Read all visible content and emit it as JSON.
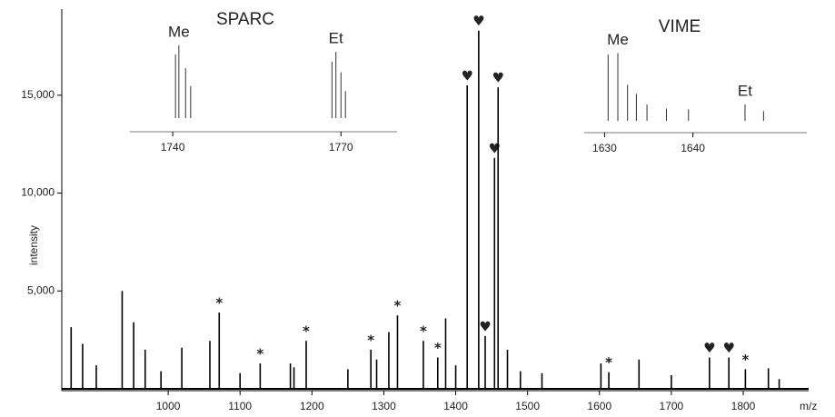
{
  "chart_data": [
    {
      "type": "stem",
      "x_label": "m/z",
      "y_label": "intensity",
      "color": "#000000",
      "x": [
        865,
        881,
        900,
        936,
        952,
        968,
        990,
        1019,
        1058,
        1071,
        1100,
        1128,
        1170,
        1175,
        1192,
        1250,
        1282,
        1290,
        1307,
        1319,
        1355,
        1375,
        1386,
        1400,
        1416,
        1432,
        1441,
        1454,
        1459,
        1472,
        1490,
        1520,
        1602,
        1613,
        1655,
        1700,
        1753,
        1780,
        1803,
        1835,
        1850
      ],
      "values": [
        3150,
        2300,
        1200,
        5000,
        3400,
        2000,
        900,
        2100,
        2450,
        3900,
        800,
        1300,
        1300,
        1100,
        2450,
        1000,
        2000,
        1500,
        2900,
        3750,
        2450,
        1600,
        3600,
        1200,
        15500,
        18300,
        2700,
        11800,
        15400,
        2000,
        900,
        800,
        1300,
        850,
        1500,
        700,
        1600,
        1600,
        1000,
        1050,
        500
      ],
      "annotations": [
        null,
        null,
        null,
        null,
        null,
        null,
        null,
        null,
        null,
        "*",
        null,
        "*",
        null,
        null,
        "*",
        null,
        "*",
        null,
        null,
        "*",
        "*",
        "*",
        null,
        null,
        "♥",
        "♥",
        "♥",
        "♥",
        "♥",
        null,
        null,
        null,
        null,
        "*",
        null,
        null,
        "♥",
        "♥",
        "*",
        null,
        null
      ],
      "xlim": [
        852,
        1891
      ],
      "xticks": [
        1000,
        1100,
        1200,
        1300,
        1400,
        1500,
        1600,
        1700,
        1800
      ],
      "ylim": [
        0,
        19400
      ],
      "yticks": [
        {
          "value": 5000,
          "label": "5,000"
        },
        {
          "value": 10000,
          "label": "10,000"
        },
        {
          "value": 15000,
          "label": "15,000"
        }
      ]
    },
    {
      "type": "stem",
      "title": "SPARC",
      "color": "#333333",
      "x": [
        1740.5,
        1741.1,
        1742.3,
        1743.2,
        1768.4,
        1769.1,
        1770,
        1770.8
      ],
      "values": [
        78,
        89,
        61,
        39,
        69,
        81,
        56,
        33
      ],
      "annotations": [
        null,
        "Me",
        null,
        null,
        null,
        "Et",
        null,
        null
      ],
      "xlim": [
        1732.7,
        1780
      ],
      "xticks": [
        1740,
        1770
      ],
      "ylim": [
        0,
        100
      ]
    },
    {
      "type": "stem",
      "title": "VIME",
      "color": "#333333",
      "x": [
        1630.4,
        1631.5,
        1632.6,
        1633.6,
        1634.8,
        1637,
        1639.5,
        1645.9,
        1648
      ],
      "values": [
        81,
        83,
        44,
        33,
        20,
        15,
        14,
        20,
        12
      ],
      "annotations": [
        null,
        "Me",
        null,
        null,
        null,
        null,
        null,
        "Et",
        null
      ],
      "xlim": [
        1627.9,
        1652.9
      ],
      "xticks": [
        1630,
        1640
      ],
      "ylim": [
        0,
        100
      ]
    }
  ]
}
